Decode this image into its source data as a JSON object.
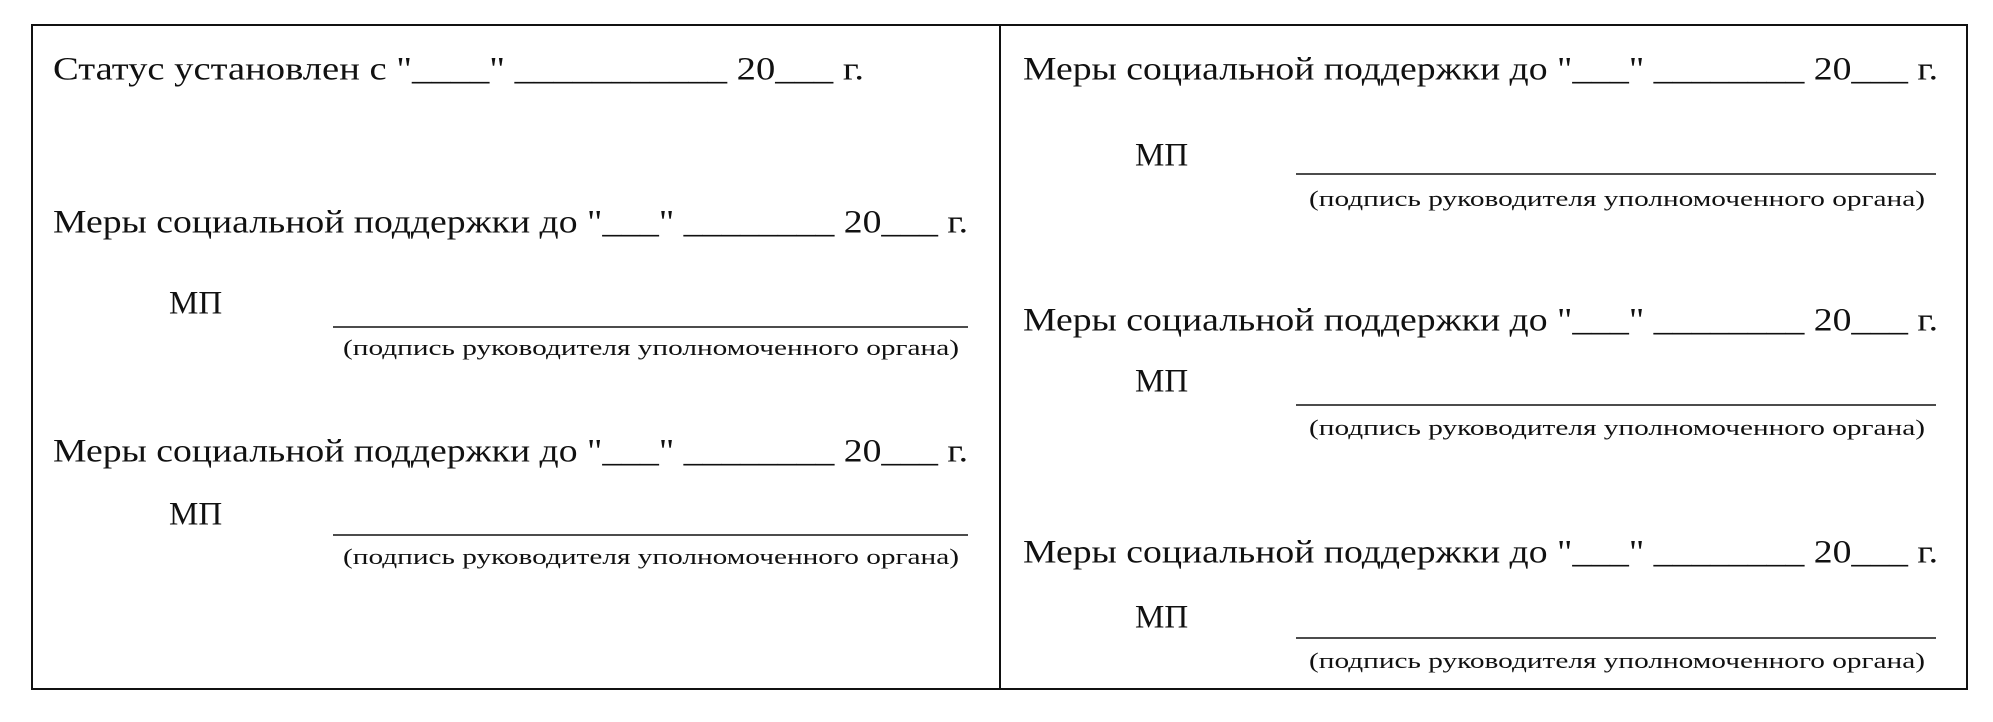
{
  "left": {
    "status": "Статус установлен   с \"____\" ___________ 20___ г.",
    "blocks": [
      {
        "heading": "Меры социальной поддержки до \"___\" ________ 20___ г.",
        "stamp": "МП",
        "caption": "(подпись руководителя уполномоченного органа)"
      },
      {
        "heading": "Меры социальной поддержки до \"___\" ________ 20___ г.",
        "stamp": "МП",
        "caption": "(подпись руководителя уполномоченного органа)"
      }
    ]
  },
  "right": {
    "blocks": [
      {
        "heading": "Меры социальной поддержки до \"___\" ________ 20___ г.",
        "stamp": "МП",
        "caption": "(подпись руководителя уполномоченного органа)"
      },
      {
        "heading": "Меры социальной поддержки до \"___\" ________ 20___ г.",
        "stamp": "МП",
        "caption": "(подпись руководителя уполномоченного органа)"
      },
      {
        "heading": "Меры социальной поддержки до \"___\" ________ 20___ г.",
        "stamp": "МП",
        "caption": "(подпись руководителя уполномоченного органа)"
      }
    ]
  }
}
